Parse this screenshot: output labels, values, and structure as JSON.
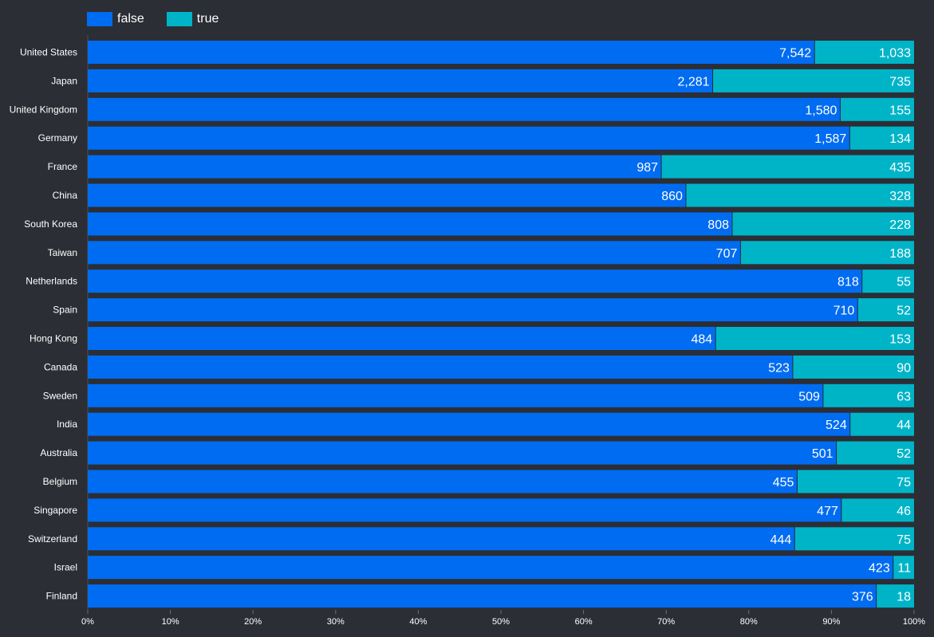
{
  "legend": {
    "false_label": "false",
    "true_label": "true"
  },
  "colors": {
    "false": "#006cf2",
    "true": "#00b4c8",
    "background": "#2b2e35",
    "text": "#ffffff"
  },
  "chart_data": {
    "type": "bar",
    "orientation": "horizontal",
    "stacked": "percent",
    "categories": [
      "United States",
      "Japan",
      "United Kingdom",
      "Germany",
      "France",
      "China",
      "South Korea",
      "Taiwan",
      "Netherlands",
      "Spain",
      "Hong Kong",
      "Canada",
      "Sweden",
      "India",
      "Australia",
      "Belgium",
      "Singapore",
      "Switzerland",
      "Israel",
      "Finland"
    ],
    "series": [
      {
        "name": "false",
        "values": [
          7542,
          2281,
          1580,
          1587,
          987,
          860,
          808,
          707,
          818,
          710,
          484,
          523,
          509,
          524,
          501,
          455,
          477,
          444,
          423,
          376
        ]
      },
      {
        "name": "true",
        "values": [
          1033,
          735,
          155,
          134,
          435,
          328,
          228,
          188,
          55,
          52,
          153,
          90,
          63,
          44,
          52,
          75,
          46,
          75,
          11,
          18
        ]
      }
    ],
    "x_ticks": [
      "0%",
      "10%",
      "20%",
      "30%",
      "40%",
      "50%",
      "60%",
      "70%",
      "80%",
      "90%",
      "100%"
    ],
    "xlim": [
      0,
      100
    ],
    "legend_position": "top-left",
    "grid": false
  }
}
